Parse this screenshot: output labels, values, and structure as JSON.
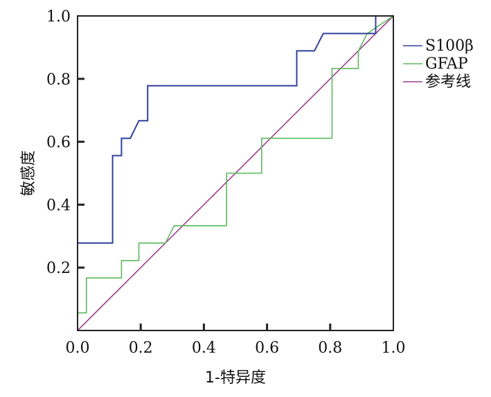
{
  "chart_data": {
    "type": "line",
    "xlabel": "1-特异度",
    "ylabel": "敏感度",
    "xlim": [
      0,
      1
    ],
    "ylim": [
      0,
      1
    ],
    "xticks": [
      "0.0",
      "0.2",
      "0.4",
      "0.6",
      "0.8",
      "1.0"
    ],
    "yticks": [
      "0.2",
      "0.4",
      "0.6",
      "0.8",
      "1.0"
    ],
    "grid": false,
    "legend_position": "right",
    "series": [
      {
        "name": "S100β",
        "color": "#2f3f9a",
        "x": [
          0,
          0.111,
          0.111,
          0.139,
          0.139,
          0.167,
          0.194,
          0.222,
          0.222,
          0.694,
          0.694,
          0.75,
          0.778,
          0.944,
          0.944,
          1.0
        ],
        "y": [
          0.278,
          0.278,
          0.556,
          0.556,
          0.611,
          0.611,
          0.667,
          0.667,
          0.778,
          0.778,
          0.889,
          0.889,
          0.944,
          0.944,
          1.0,
          1.0
        ]
      },
      {
        "name": "GFAP",
        "color": "#5cb85c",
        "x": [
          0,
          0,
          0.028,
          0.028,
          0.139,
          0.139,
          0.194,
          0.194,
          0.278,
          0.306,
          0.472,
          0.472,
          0.583,
          0.583,
          0.806,
          0.806,
          0.889,
          0.889,
          0.917,
          1.0
        ],
        "y": [
          0,
          0.056,
          0.056,
          0.167,
          0.167,
          0.222,
          0.222,
          0.278,
          0.278,
          0.333,
          0.333,
          0.5,
          0.5,
          0.611,
          0.611,
          0.833,
          0.833,
          0.889,
          0.944,
          1.0
        ]
      },
      {
        "name": "参考线",
        "color": "#9b3f8e",
        "x": [
          0,
          1
        ],
        "y": [
          0,
          1
        ]
      }
    ]
  }
}
